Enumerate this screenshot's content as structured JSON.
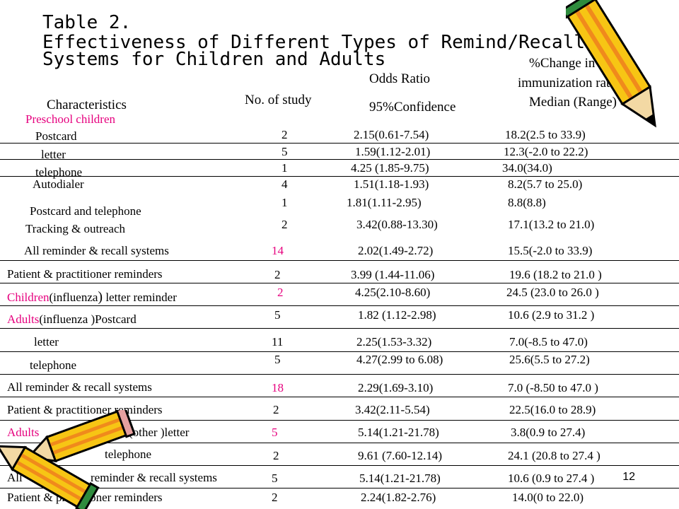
{
  "title": {
    "line1": "Table 2.",
    "line2": "Effectiveness of Different Types of Remind/Recall",
    "line3": "Systems for Children and Adults"
  },
  "headers": {
    "characteristics": "Characteristics",
    "no_of_study": "No. of study",
    "odds_ratio": "Odds Ratio",
    "confidence": "95%Confidence",
    "change_line1": "%Change in",
    "change_line2": "immunization rates,",
    "change_line3": "Median (Range)"
  },
  "colors": {
    "accent": "#e6007e",
    "pencil_yellow": "#f7c514",
    "pencil_orange": "#f08a1c",
    "pencil_green": "#2e8b3d"
  },
  "rows": [
    {
      "label": "Preschool children",
      "n": "",
      "or": "",
      "change": "",
      "label_color": "pink"
    },
    {
      "label": "Postcard",
      "n": "2",
      "or": "2.15(0.61-7.54)",
      "change": "18.2(2.5 to 33.9)"
    },
    {
      "label": "letter",
      "n": "5",
      "or": "1.59(1.12-2.01)",
      "change": "12.3(-2.0 to 22.2)"
    },
    {
      "label": "telephone",
      "n": "1",
      "or": "4.25 (1.85-9.75)",
      "change": "34.0(34.0)"
    },
    {
      "label": "Autodialer",
      "n": "4",
      "or": "1.51(1.18-1.93)",
      "change": "8.2(5.7 to 25.0)"
    },
    {
      "label": "Postcard and telephone",
      "n": "1",
      "or": "1.81(1.11-2.95)",
      "change": "8.8(8.8)"
    },
    {
      "label": "Tracking &  outreach",
      "n": "2",
      "or": "3.42(0.88-13.30)",
      "change": "17.1(13.2 to 21.0)"
    },
    {
      "label": "All reminder & recall systems",
      "n": "14",
      "or": "2.02(1.49-2.72)",
      "change": "15.5(-2.0 to 33.9)",
      "n_color": "red"
    },
    {
      "label": "Patient & practitioner reminders",
      "n": "2",
      "or": "3.99 (1.44-11.06)",
      "change": "19.6 (18.2 to 21.0 )"
    },
    {
      "label_a": "Children",
      "label_b": "(influenza",
      "label_c": ")",
      "label_d": " letter reminder",
      "n": "2",
      "or": "4.25(2.10-8.60)",
      "change": "24.5 (23.0 to 26.0 )",
      "n_color": "red"
    },
    {
      "label_a": "Adults",
      "label_b": "(influenza )Postcard",
      "n": "5",
      "or": "1.82 (1.12-2.98)",
      "change": "10.6 (2.9 to 31.2 )"
    },
    {
      "label": "letter",
      "n": "11",
      "or": "2.25(1.53-3.32)",
      "change": "7.0(-8.5 to 47.0)"
    },
    {
      "label": "telephone",
      "n": "5",
      "or": "4.27(2.99 to 6.08)",
      "change": "25.6(5.5 to 27.2)"
    },
    {
      "label": "All reminder & recall systems",
      "n": "18",
      "or": "2.29(1.69-3.10)",
      "change": "7.0 (-8.50 to 47.0 )",
      "n_color": "red"
    },
    {
      "label": "Patient & practitioner reminders",
      "n": "2",
      "or": "3.42(2.11-5.54)",
      "change": "22.5(16.0 to 28.9)"
    },
    {
      "label_a": "Adults",
      "label_b": "(other )letter",
      "n": "5",
      "or": "5.14(1.21-21.78)",
      "change": "3.8(0.9 to 27.4)",
      "n_color": "red"
    },
    {
      "label": "telephone",
      "n": "2",
      "or": "9.61 (7.60-12.14)",
      "change": "24.1 (20.8 to 27.4 )"
    },
    {
      "label_a": "All",
      "label_b": "reminder & recall systems",
      "n": "5",
      "or": "5.14(1.21-21.78)",
      "change": "10.6 (0.9 to 27.4 )"
    },
    {
      "label": "Patient & practitioner reminders",
      "n": "2",
      "or": "2.24(1.82-2.76)",
      "change": "14.0(0 to 22.0)"
    }
  ],
  "page_number": "12"
}
